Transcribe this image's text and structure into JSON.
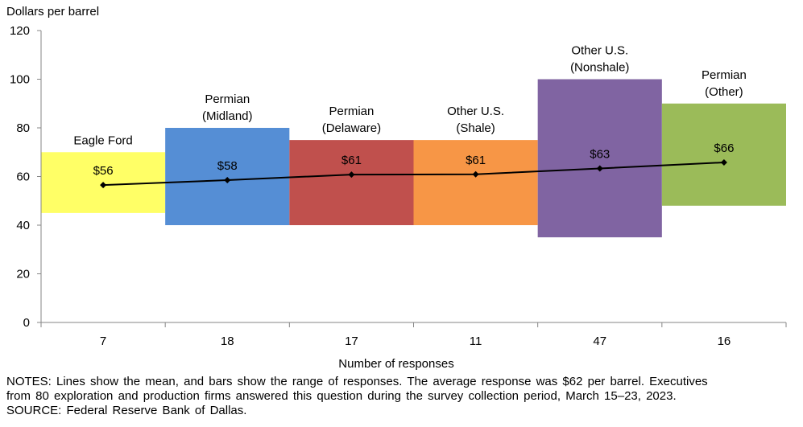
{
  "chart_data": {
    "type": "bar",
    "ylabel": "Dollars per barrel",
    "xlabel": "Number of responses",
    "ylim": [
      0,
      120
    ],
    "yticks": [
      "0",
      "20",
      "40",
      "60",
      "80",
      "100",
      "120"
    ],
    "bars": [
      {
        "category": "7",
        "label_lines": [
          "Eagle Ford"
        ],
        "low": 45,
        "high": 70,
        "mean": 56.5,
        "mean_label": "$56",
        "color": "#FFFF66"
      },
      {
        "category": "18",
        "label_lines": [
          "Permian",
          "(Midland)"
        ],
        "low": 40,
        "high": 80,
        "mean": 58.5,
        "mean_label": "$58",
        "color": "#558ED5"
      },
      {
        "category": "17",
        "label_lines": [
          "Permian",
          "(Delaware)"
        ],
        "low": 40,
        "high": 75,
        "mean": 60.8,
        "mean_label": "$61",
        "color": "#C0504D"
      },
      {
        "category": "11",
        "label_lines": [
          "Other U.S.",
          "(Shale)"
        ],
        "low": 40,
        "high": 75,
        "mean": 60.9,
        "mean_label": "$61",
        "color": "#F79646"
      },
      {
        "category": "47",
        "label_lines": [
          "Other U.S.",
          "(Nonshale)"
        ],
        "low": 35,
        "high": 100,
        "mean": 63.3,
        "mean_label": "$63",
        "color": "#8064A2"
      },
      {
        "category": "16",
        "label_lines": [
          "Permian",
          "(Other)"
        ],
        "low": 48,
        "high": 90,
        "mean": 65.8,
        "mean_label": "$66",
        "color": "#9BBB59"
      }
    ],
    "line_color": "#000000"
  },
  "notes": {
    "line1": "NOTES: Lines show the mean, and bars show the range of responses. The average response was $62 per barrel. Executives",
    "line2": "from 80 exploration and production firms answered this question during the survey collection period, March 15–23, 2023.",
    "line3": "SOURCE: Federal Reserve Bank of Dallas."
  }
}
